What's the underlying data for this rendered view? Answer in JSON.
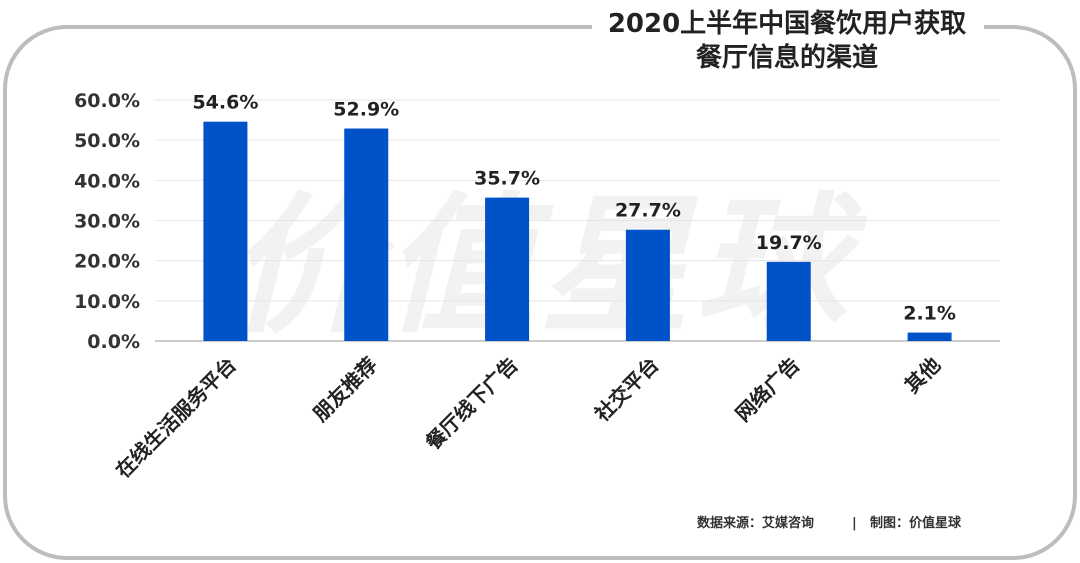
{
  "chart_data": {
    "type": "bar",
    "title_lines": [
      "2020上半年中国餐饮用户获取",
      "餐厅信息的渠道"
    ],
    "categories": [
      "在线生活服务平台",
      "朋友推荐",
      "餐厅线下广告",
      "社交平台",
      "网络广告",
      "其他"
    ],
    "values": [
      54.6,
      52.9,
      35.7,
      27.7,
      19.7,
      2.1
    ],
    "value_labels": [
      "54.6%",
      "52.9%",
      "35.7%",
      "27.7%",
      "19.7%",
      "2.1%"
    ],
    "y_ticks": [
      "0.0%",
      "10.0%",
      "20.0%",
      "30.0%",
      "40.0%",
      "50.0%",
      "60.0%"
    ],
    "y_tick_values": [
      0,
      10,
      20,
      30,
      40,
      50,
      60
    ],
    "ylim": [
      0,
      60
    ],
    "grid": true,
    "legend": "none",
    "bar_color": "#0052C8",
    "xlabel": "",
    "ylabel": ""
  },
  "watermark": "价值星球",
  "footer": {
    "source": "数据来源：艾媒咨询",
    "separator": "|",
    "maker": "制图：价值星球"
  },
  "colors": {
    "frame": "#BDBDBD",
    "grid": "#E6E6E6",
    "axis": "#333333",
    "text": "#222222",
    "watermark": "#F2F2F2"
  }
}
